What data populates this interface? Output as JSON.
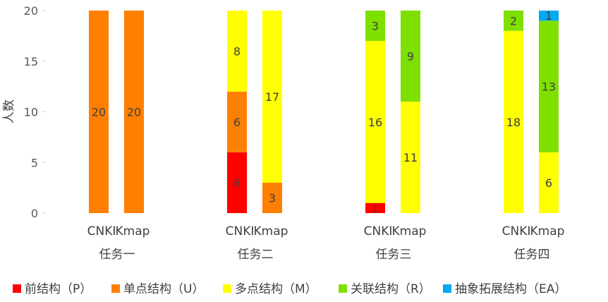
{
  "chart_data": {
    "type": "bar",
    "stacked": true,
    "ylabel": "人数",
    "ylim": [
      0,
      20
    ],
    "yticks": [
      0,
      5,
      10,
      15,
      20
    ],
    "grid": false,
    "legend_position": "bottom",
    "groups": [
      "任务一",
      "任务二",
      "任务三",
      "任务四"
    ],
    "bar_labels": [
      "CNKI",
      "Kmap"
    ],
    "series": [
      {
        "name": "前结构（P）",
        "color": "#ff0000"
      },
      {
        "name": "单点结构（U）",
        "color": "#ff7f00"
      },
      {
        "name": "多点结构（M）",
        "color": "#ffff00"
      },
      {
        "name": "关联结构（R）",
        "color": "#7fe000"
      },
      {
        "name": "抽象拓展结构（EA）",
        "color": "#00aaee"
      }
    ],
    "bars": [
      {
        "group": 0,
        "label": "CNKI",
        "values": [
          0,
          20,
          0,
          0,
          0
        ]
      },
      {
        "group": 0,
        "label": "Kmap",
        "values": [
          0,
          20,
          0,
          0,
          0
        ]
      },
      {
        "group": 1,
        "label": "CNKI",
        "values": [
          6,
          6,
          8,
          0,
          0
        ]
      },
      {
        "group": 1,
        "label": "Kmap",
        "values": [
          0,
          3,
          17,
          0,
          0
        ]
      },
      {
        "group": 2,
        "label": "CNKI",
        "values": [
          1,
          0,
          16,
          3,
          0
        ]
      },
      {
        "group": 2,
        "label": "Kmap",
        "values": [
          0,
          0,
          11,
          9,
          0
        ]
      },
      {
        "group": 3,
        "label": "CNKI",
        "values": [
          0,
          0,
          18,
          2,
          0
        ]
      },
      {
        "group": 3,
        "label": "Kmap",
        "values": [
          0,
          0,
          6,
          13,
          1
        ]
      }
    ]
  }
}
